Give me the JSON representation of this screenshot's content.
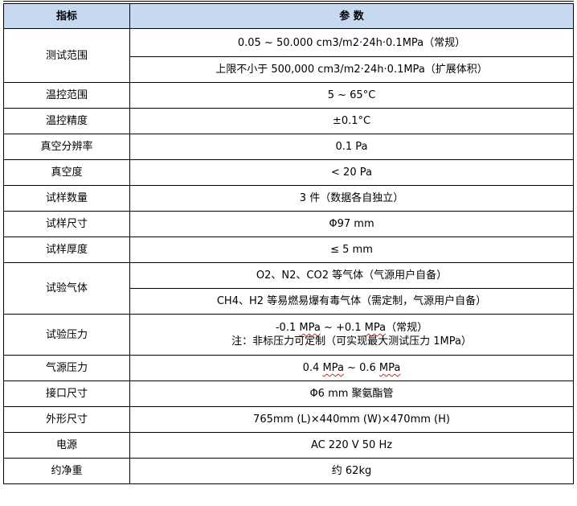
{
  "header": {
    "col1": "指标",
    "col2": "参 数"
  },
  "rows": {
    "r1": {
      "label": "测试范围",
      "v1": "0.05  ~  50.000 cm3/m2·24h·0.1MPa（常规）",
      "v2": "上限不小于 500,000 cm3/m2·24h·0.1MPa（扩展体积）"
    },
    "r2": {
      "label": "温控范围",
      "v": "5  ~  65°C"
    },
    "r3": {
      "label": "温控精度",
      "v": "±0.1°C"
    },
    "r4": {
      "label": "真空分辨率",
      "v": "0.1 Pa"
    },
    "r5": {
      "label": "真空度",
      "v": "< 20 Pa"
    },
    "r6": {
      "label": "试样数量",
      "v": "3 件（数据各自独立）"
    },
    "r7": {
      "label": "试样尺寸",
      "v": "Φ97 mm"
    },
    "r8": {
      "label": "试样厚度",
      "v": "≤  5 mm"
    },
    "r9": {
      "label": "试验气体",
      "v1": "O2、N2、CO2 等气体（气源用户自备）",
      "v2": "CH4、H2 等易燃易爆有毒气体（需定制，气源用户自备）"
    },
    "r10": {
      "label": "试验压力",
      "a": "-0.1 ",
      "b": "MPa",
      "c": " ~ +0.1 ",
      "d": "MPa",
      "e": "（常规）",
      "note": "注：非标压力可定制（可实现最大测试压力 1MPa）"
    },
    "r11": {
      "label": "气源压力",
      "a": "0.4 ",
      "b": "MPa",
      "c": " ~ 0.6 ",
      "d": "MPa"
    },
    "r12": {
      "label": "接口尺寸",
      "v": "Φ6 mm  聚氨酯管"
    },
    "r13": {
      "label": "外形尺寸",
      "v": "765mm (L)×440mm (W)×470mm (H)"
    },
    "r14": {
      "label": "电源",
      "v": "AC 220 V 50 Hz"
    },
    "r15": {
      "label": "约净重",
      "v": "约 62kg"
    }
  }
}
